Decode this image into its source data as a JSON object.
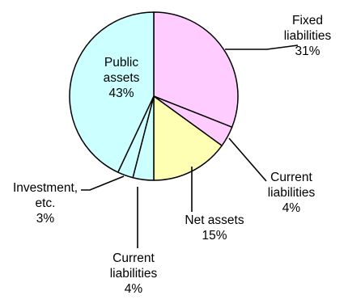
{
  "chart_data": {
    "type": "pie",
    "title": "",
    "start_angle_deg": 0,
    "direction": "clockwise",
    "slices": [
      {
        "label": [
          "Fixed",
          "liabilities"
        ],
        "value": 31,
        "value_label": "31%",
        "color": "#ffccff"
      },
      {
        "label": [
          "Current",
          "liabilities"
        ],
        "value": 4,
        "value_label": "4%",
        "color": "#ffccff"
      },
      {
        "label": [
          "Net assets"
        ],
        "value": 15,
        "value_label": "15%",
        "color": "#ffffb3"
      },
      {
        "label": [
          "Current",
          "liabilities"
        ],
        "value": 4,
        "value_label": "4%",
        "color": "#ccffff"
      },
      {
        "label": [
          "Investment,",
          "etc."
        ],
        "value": 3,
        "value_label": "3%",
        "color": "#ccffff"
      },
      {
        "label": [
          "Public",
          "assets"
        ],
        "value": 43,
        "value_label": "43%",
        "color": "#ccffff"
      }
    ],
    "outline_color": "#000000",
    "leader_color": "#000000"
  }
}
